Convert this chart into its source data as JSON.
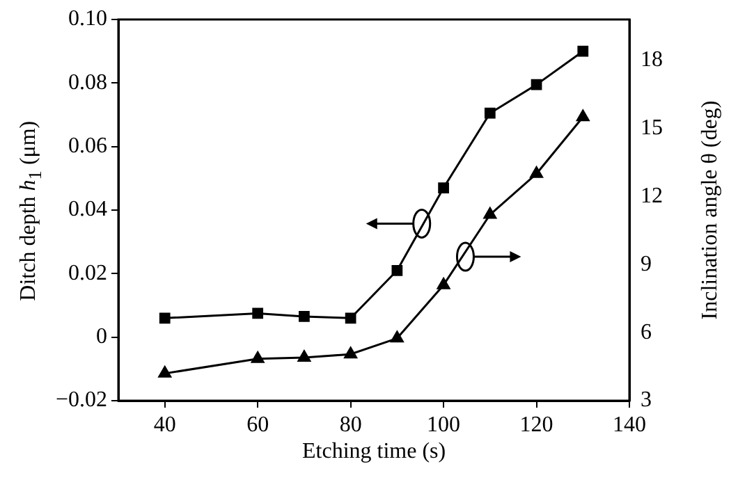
{
  "chart_data": {
    "type": "line",
    "xlabel": "Etching time (s)",
    "ylabel": "Ditch depth h$_{1}$ (μm)",
    "y2label": "Inclination angle θ (deg)",
    "x": [
      40,
      60,
      70,
      80,
      90,
      100,
      110,
      120,
      130
    ],
    "series": [
      {
        "color": "#000000",
        "marker": "square",
        "values": [
          0.006,
          0.0075,
          0.0065,
          0.006,
          0.021,
          0.047,
          0.0705,
          0.0795,
          0.09
        ]
      },
      {
        "color": "#000000",
        "marker": "triangle",
        "axis": "y2",
        "values": [
          4.2,
          4.85,
          4.9,
          5.05,
          5.75,
          8.1,
          11.2,
          13.0,
          15.5
        ]
      }
    ],
    "xlim": [
      30,
      140
    ],
    "xticks": [
      40,
      60,
      80,
      100,
      120,
      140
    ],
    "ylim": [
      -0.02,
      0.1
    ],
    "yticks": [
      {
        "value": -0.02,
        "label": "−0.02"
      },
      0,
      0.02,
      0.04,
      0.06,
      0.08,
      {
        "value": 0.1,
        "label": "0.10"
      }
    ],
    "y2lim": [
      3,
      19.8
    ],
    "y2ticks": [
      3,
      6,
      9,
      12,
      15,
      18
    ],
    "grid": false,
    "legend": false,
    "line_style": "solid"
  }
}
